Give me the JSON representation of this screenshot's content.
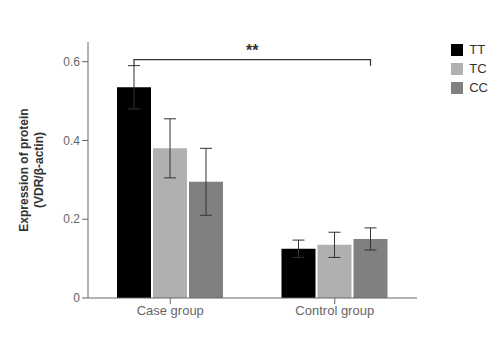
{
  "chart_data": {
    "type": "bar",
    "categories": [
      "Case group",
      "Control group"
    ],
    "series": [
      {
        "name": "TT",
        "color": "#000000",
        "values": [
          0.535,
          0.125
        ],
        "errors": [
          0.055,
          0.022
        ]
      },
      {
        "name": "TC",
        "color": "#b0b0b0",
        "values": [
          0.38,
          0.135
        ],
        "errors": [
          0.075,
          0.032
        ]
      },
      {
        "name": "CC",
        "color": "#808080",
        "values": [
          0.295,
          0.15
        ],
        "errors": [
          0.085,
          0.028
        ]
      }
    ],
    "ylabel": "Expression of protein\n(VDR/β-actin)",
    "ylim": [
      0.0,
      0.65
    ],
    "yticks": [
      0.0,
      0.2,
      0.4,
      0.6
    ],
    "grid": false,
    "legend": "upper right",
    "annotations": [
      {
        "text": "**",
        "from": [
          "Case group",
          "TT"
        ],
        "to": [
          "Control group",
          "CC"
        ],
        "y": 0.605
      }
    ]
  }
}
